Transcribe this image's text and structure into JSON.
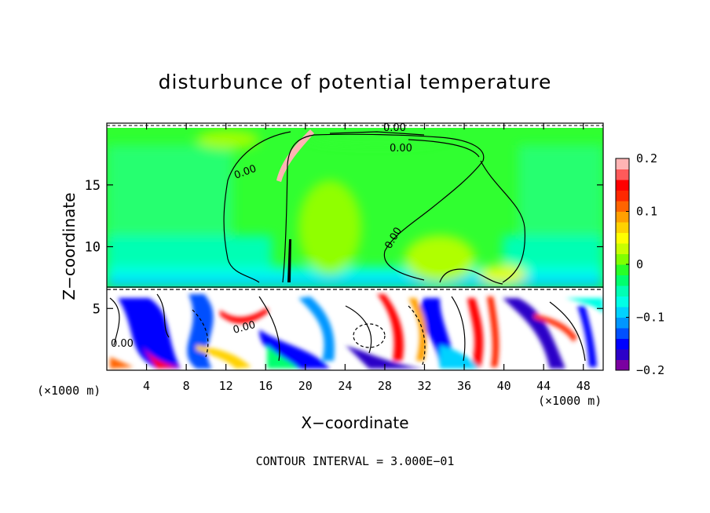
{
  "chart_data": {
    "type": "heatmap",
    "title": "disturbunce of potential temperature",
    "xlabel": "X−coordinate",
    "ylabel": "Z−coordinate",
    "x_unit_left": "(×1000 m)",
    "x_unit_right": "(×1000 m)",
    "x_ticks": [
      "4",
      "8",
      "12",
      "16",
      "20",
      "24",
      "28",
      "32",
      "36",
      "40",
      "44",
      "48"
    ],
    "x_tick_values": [
      4,
      8,
      12,
      16,
      20,
      24,
      28,
      32,
      36,
      40,
      44,
      48
    ],
    "y_ticks": [
      "5",
      "10",
      "15"
    ],
    "y_tick_values": [
      5,
      10,
      15
    ],
    "xlim": [
      0,
      50
    ],
    "ylim": [
      0,
      20
    ],
    "colorbar": {
      "ticks": [
        "0.2",
        "0.1",
        "0",
        "−0.1",
        "−0.2"
      ],
      "tick_values": [
        0.2,
        0.1,
        0,
        -0.1,
        -0.2
      ],
      "range": [
        -0.2,
        0.2
      ],
      "colors": [
        "#7a00a0",
        "#2c00c8",
        "#0000ff",
        "#0050ff",
        "#0096ff",
        "#00d2ff",
        "#00ffe6",
        "#00ffb4",
        "#00ff6e",
        "#28ff28",
        "#80ff00",
        "#c8ff00",
        "#ffff00",
        "#ffd200",
        "#ffa000",
        "#ff6400",
        "#ff2800",
        "#ff0000",
        "#ff5a5a",
        "#ffb4b4"
      ]
    },
    "contour_label": "0.00",
    "contour_interval_text": "CONTOUR INTERVAL = 3.000E−01"
  }
}
